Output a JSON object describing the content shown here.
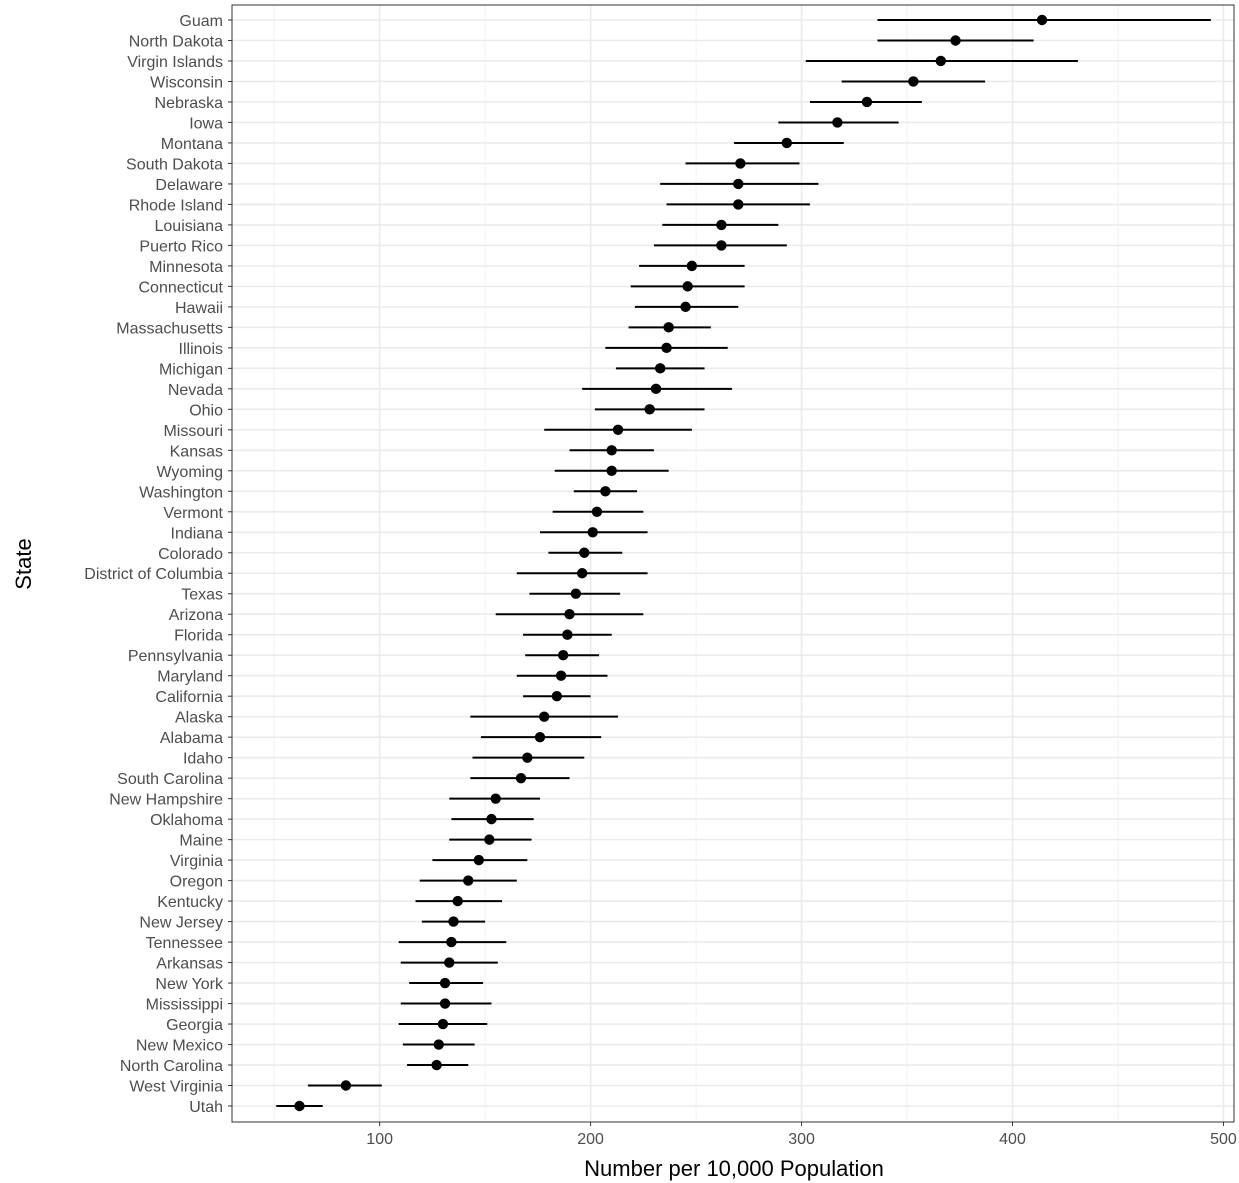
{
  "chart_data": {
    "type": "scatter",
    "subtype": "point-with-error-bars",
    "title": "",
    "xlabel": "Number per 10,000 Population",
    "ylabel": "State",
    "xlim": [
      30,
      505
    ],
    "x_ticks": [
      100,
      200,
      300,
      400,
      500
    ],
    "grid": true,
    "theme": "bw",
    "colors": {
      "point": "#000000",
      "errorbar": "#000000",
      "grid_major": "#ebebeb",
      "grid_minor": "#f2f2f2",
      "panel_border": "#333333",
      "tick_text": "#4d4d4d"
    },
    "points": [
      {
        "state": "Guam",
        "value": 414,
        "lower": 336,
        "upper": 494
      },
      {
        "state": "North Dakota",
        "value": 373,
        "lower": 336,
        "upper": 410
      },
      {
        "state": "Virgin Islands",
        "value": 366,
        "lower": 302,
        "upper": 431
      },
      {
        "state": "Wisconsin",
        "value": 353,
        "lower": 319,
        "upper": 387
      },
      {
        "state": "Nebraska",
        "value": 331,
        "lower": 304,
        "upper": 357
      },
      {
        "state": "Iowa",
        "value": 317,
        "lower": 289,
        "upper": 346
      },
      {
        "state": "Montana",
        "value": 293,
        "lower": 268,
        "upper": 320
      },
      {
        "state": "South Dakota",
        "value": 271,
        "lower": 245,
        "upper": 299
      },
      {
        "state": "Delaware",
        "value": 270,
        "lower": 233,
        "upper": 308
      },
      {
        "state": "Rhode Island",
        "value": 270,
        "lower": 236,
        "upper": 304
      },
      {
        "state": "Louisiana",
        "value": 262,
        "lower": 234,
        "upper": 289
      },
      {
        "state": "Puerto Rico",
        "value": 262,
        "lower": 230,
        "upper": 293
      },
      {
        "state": "Minnesota",
        "value": 248,
        "lower": 223,
        "upper": 273
      },
      {
        "state": "Connecticut",
        "value": 246,
        "lower": 219,
        "upper": 273
      },
      {
        "state": "Hawaii",
        "value": 245,
        "lower": 221,
        "upper": 270
      },
      {
        "state": "Massachusetts",
        "value": 237,
        "lower": 218,
        "upper": 257
      },
      {
        "state": "Illinois",
        "value": 236,
        "lower": 207,
        "upper": 265
      },
      {
        "state": "Michigan",
        "value": 233,
        "lower": 212,
        "upper": 254
      },
      {
        "state": "Nevada",
        "value": 231,
        "lower": 196,
        "upper": 267
      },
      {
        "state": "Ohio",
        "value": 228,
        "lower": 202,
        "upper": 254
      },
      {
        "state": "Missouri",
        "value": 213,
        "lower": 178,
        "upper": 248
      },
      {
        "state": "Kansas",
        "value": 210,
        "lower": 190,
        "upper": 230
      },
      {
        "state": "Wyoming",
        "value": 210,
        "lower": 183,
        "upper": 237
      },
      {
        "state": "Washington",
        "value": 207,
        "lower": 192,
        "upper": 222
      },
      {
        "state": "Vermont",
        "value": 203,
        "lower": 182,
        "upper": 225
      },
      {
        "state": "Indiana",
        "value": 201,
        "lower": 176,
        "upper": 227
      },
      {
        "state": "Colorado",
        "value": 197,
        "lower": 180,
        "upper": 215
      },
      {
        "state": "District of Columbia",
        "value": 196,
        "lower": 165,
        "upper": 227
      },
      {
        "state": "Texas",
        "value": 193,
        "lower": 171,
        "upper": 214
      },
      {
        "state": "Arizona",
        "value": 190,
        "lower": 155,
        "upper": 225
      },
      {
        "state": "Florida",
        "value": 189,
        "lower": 168,
        "upper": 210
      },
      {
        "state": "Pennsylvania",
        "value": 187,
        "lower": 169,
        "upper": 204
      },
      {
        "state": "Maryland",
        "value": 186,
        "lower": 165,
        "upper": 208
      },
      {
        "state": "California",
        "value": 184,
        "lower": 168,
        "upper": 200
      },
      {
        "state": "Alaska",
        "value": 178,
        "lower": 143,
        "upper": 213
      },
      {
        "state": "Alabama",
        "value": 176,
        "lower": 148,
        "upper": 205
      },
      {
        "state": "Idaho",
        "value": 170,
        "lower": 144,
        "upper": 197
      },
      {
        "state": "South Carolina",
        "value": 167,
        "lower": 143,
        "upper": 190
      },
      {
        "state": "New Hampshire",
        "value": 155,
        "lower": 133,
        "upper": 176
      },
      {
        "state": "Oklahoma",
        "value": 153,
        "lower": 134,
        "upper": 173
      },
      {
        "state": "Maine",
        "value": 152,
        "lower": 133,
        "upper": 172
      },
      {
        "state": "Virginia",
        "value": 147,
        "lower": 125,
        "upper": 170
      },
      {
        "state": "Oregon",
        "value": 142,
        "lower": 119,
        "upper": 165
      },
      {
        "state": "Kentucky",
        "value": 137,
        "lower": 117,
        "upper": 158
      },
      {
        "state": "New Jersey",
        "value": 135,
        "lower": 120,
        "upper": 150
      },
      {
        "state": "Tennessee",
        "value": 134,
        "lower": 109,
        "upper": 160
      },
      {
        "state": "Arkansas",
        "value": 133,
        "lower": 110,
        "upper": 156
      },
      {
        "state": "New York",
        "value": 131,
        "lower": 114,
        "upper": 149
      },
      {
        "state": "Mississippi",
        "value": 131,
        "lower": 110,
        "upper": 153
      },
      {
        "state": "Georgia",
        "value": 130,
        "lower": 109,
        "upper": 151
      },
      {
        "state": "New Mexico",
        "value": 128,
        "lower": 111,
        "upper": 145
      },
      {
        "state": "North Carolina",
        "value": 127,
        "lower": 113,
        "upper": 142
      },
      {
        "state": "West Virginia",
        "value": 84,
        "lower": 66,
        "upper": 101
      },
      {
        "state": "Utah",
        "value": 62,
        "lower": 51,
        "upper": 73
      }
    ]
  }
}
